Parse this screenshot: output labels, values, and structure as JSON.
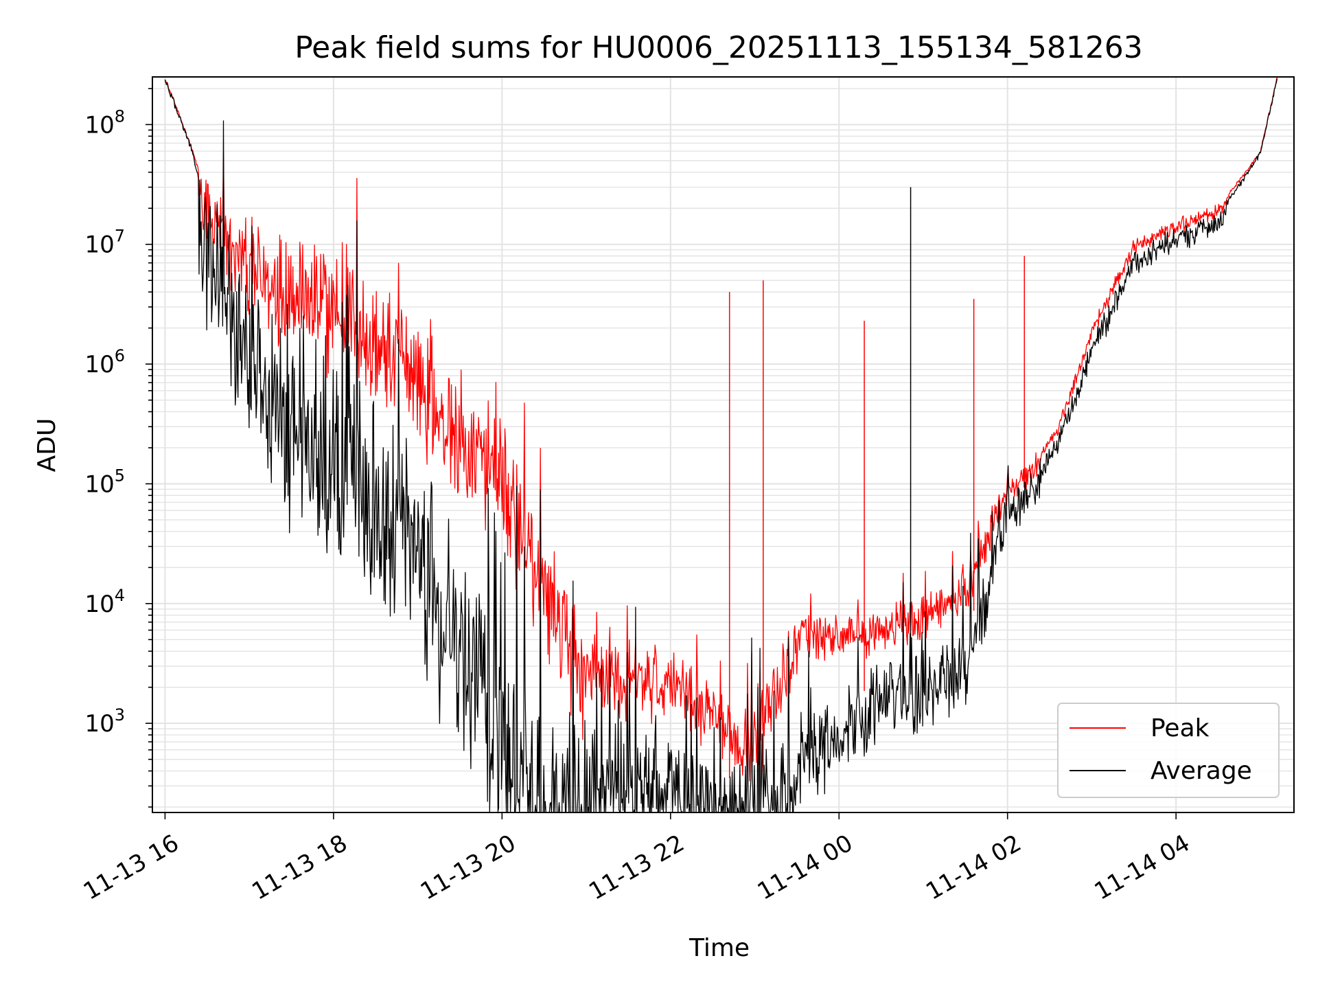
{
  "chart_data": {
    "type": "line",
    "title": "Peak field sums for HU0006_20251113_155134_581263",
    "xlabel": "Time",
    "ylabel": "ADU",
    "x_ticks": [
      "11-13 16",
      "11-13 18",
      "11-13 20",
      "11-13 22",
      "11-14 00",
      "11-14 02",
      "11-14 04"
    ],
    "x_tick_hours": [
      0,
      2,
      4,
      6,
      8,
      10,
      12
    ],
    "xlim_hours": [
      -0.15,
      13.4
    ],
    "y_scale": "log",
    "ylim": [
      180,
      250000000
    ],
    "y_ticks": [
      {
        "base": "10",
        "exp": "3",
        "value": 1000
      },
      {
        "base": "10",
        "exp": "4",
        "value": 10000
      },
      {
        "base": "10",
        "exp": "5",
        "value": 100000
      },
      {
        "base": "10",
        "exp": "6",
        "value": 1000000
      },
      {
        "base": "10",
        "exp": "7",
        "value": 10000000
      },
      {
        "base": "10",
        "exp": "8",
        "value": 100000000
      }
    ],
    "grid": true,
    "legend_position": "bottom-right",
    "series": [
      {
        "name": "Peak",
        "color": "#ff0000",
        "x_hours": [
          0.0,
          0.3,
          0.5,
          0.7,
          1.0,
          1.5,
          2.0,
          2.5,
          3.0,
          3.5,
          4.0,
          4.5,
          5.0,
          5.5,
          6.0,
          6.3,
          6.6,
          7.0,
          7.5,
          8.0,
          8.5,
          9.0,
          9.5,
          10.0,
          10.3,
          10.6,
          11.0,
          11.5,
          12.0,
          12.5,
          13.0,
          13.2
        ],
        "values": [
          250000000,
          70000000,
          25000000,
          15000000,
          9000000,
          7000000,
          5000000,
          2500000,
          1200000,
          400000,
          150000,
          20000,
          4000,
          3000,
          3000,
          2000,
          1200,
          900,
          6000,
          7000,
          7000,
          10000,
          15000,
          100000,
          150000,
          300000,
          2000000,
          10000000,
          15000000,
          20000000,
          60000000,
          250000000
        ]
      },
      {
        "name": "Average",
        "color": "#000000",
        "x_hours": [
          0.0,
          0.3,
          0.5,
          0.7,
          1.0,
          1.5,
          2.0,
          2.5,
          3.0,
          3.5,
          4.0,
          4.5,
          5.0,
          5.5,
          6.0,
          6.3,
          6.6,
          7.0,
          7.5,
          8.0,
          8.5,
          9.0,
          9.5,
          10.0,
          10.3,
          10.6,
          11.0,
          11.5,
          12.0,
          12.5,
          13.0,
          13.2
        ],
        "values": [
          250000000,
          70000000,
          20000000,
          8000000,
          3000000,
          1500000,
          600000,
          250000,
          80000,
          20000,
          2000,
          700,
          600,
          800,
          500,
          400,
          350,
          350,
          700,
          1200,
          2500,
          3000,
          5000,
          80000,
          120000,
          250000,
          1500000,
          8000000,
          13000000,
          18000000,
          60000000,
          250000000
        ]
      }
    ],
    "spikes": [
      {
        "x_hours": 6.7,
        "value": 4000000,
        "series": "Peak"
      },
      {
        "x_hours": 7.1,
        "value": 5000000,
        "series": "Peak"
      },
      {
        "x_hours": 8.3,
        "value": 2300000,
        "series": "Peak"
      },
      {
        "x_hours": 8.85,
        "value": 30000000,
        "series": "Average"
      },
      {
        "x_hours": 9.6,
        "value": 3500000,
        "series": "Peak"
      },
      {
        "x_hours": 10.2,
        "value": 8000000,
        "series": "Peak"
      }
    ]
  },
  "legend": {
    "peak_label": "Peak",
    "average_label": "Average"
  }
}
